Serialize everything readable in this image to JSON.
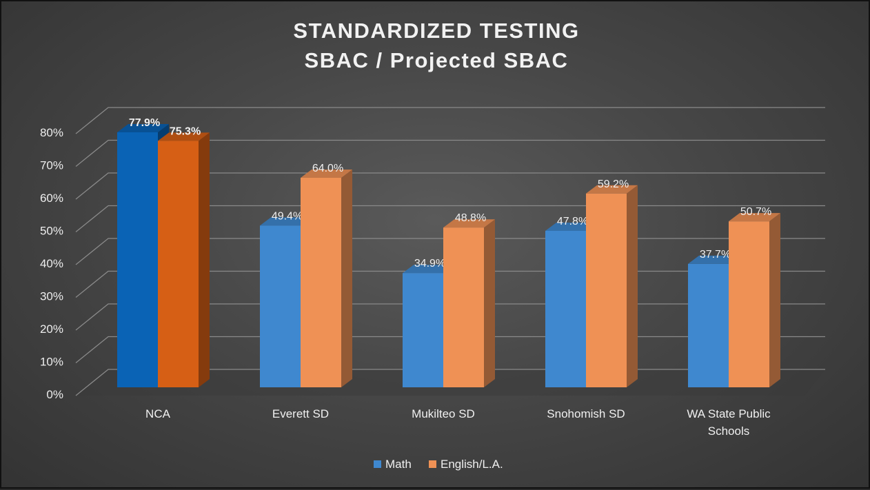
{
  "chart_data": {
    "type": "bar",
    "title_line1": "STANDARDIZED TESTING",
    "title_line2": "SBAC / Projected SBAC",
    "categories": [
      "NCA",
      "Everett SD",
      "Mukilteo SD",
      "Snohomish SD",
      "WA State Public Schools"
    ],
    "series": [
      {
        "name": "Math",
        "values": [
          77.9,
          49.4,
          34.9,
          47.8,
          37.7
        ],
        "labels": [
          "77.9%",
          "49.4%",
          "34.9%",
          "47.8%",
          "37.7%"
        ],
        "color": "#3f88cf",
        "highlight_color": "#0a63b5"
      },
      {
        "name": "English/L.A.",
        "values": [
          75.3,
          64.0,
          48.8,
          59.2,
          50.7
        ],
        "labels": [
          "75.3%",
          "64.0%",
          "48.8%",
          "59.2%",
          "50.7%"
        ],
        "color": "#ef9155",
        "highlight_color": "#d65f15"
      }
    ],
    "y_ticks": [
      "0%",
      "10%",
      "20%",
      "30%",
      "40%",
      "50%",
      "60%",
      "70%",
      "80%"
    ],
    "y_range": [
      0,
      80
    ],
    "highlight_category_index": 0,
    "legend_position": "bottom",
    "grid": true
  }
}
